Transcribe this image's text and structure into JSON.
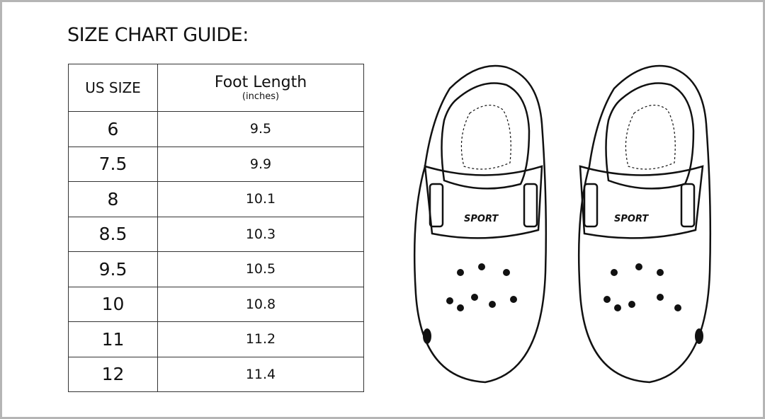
{
  "title": "SIZE CHART GUIDE:",
  "table": {
    "headers": {
      "size": "US SIZE",
      "length": "Foot Length",
      "length_unit": "(inches)"
    },
    "rows": [
      {
        "size": "6",
        "length": "9.5"
      },
      {
        "size": "7.5",
        "length": "9.9"
      },
      {
        "size": "8",
        "length": "10.1"
      },
      {
        "size": "8.5",
        "length": "10.3"
      },
      {
        "size": "9.5",
        "length": "10.5"
      },
      {
        "size": "10",
        "length": "10.8"
      },
      {
        "size": "11",
        "length": "11.2"
      },
      {
        "size": "12",
        "length": "11.4"
      }
    ]
  },
  "illustration": {
    "strap_label_left": "SPORT",
    "strap_label_right": "SPORT"
  }
}
